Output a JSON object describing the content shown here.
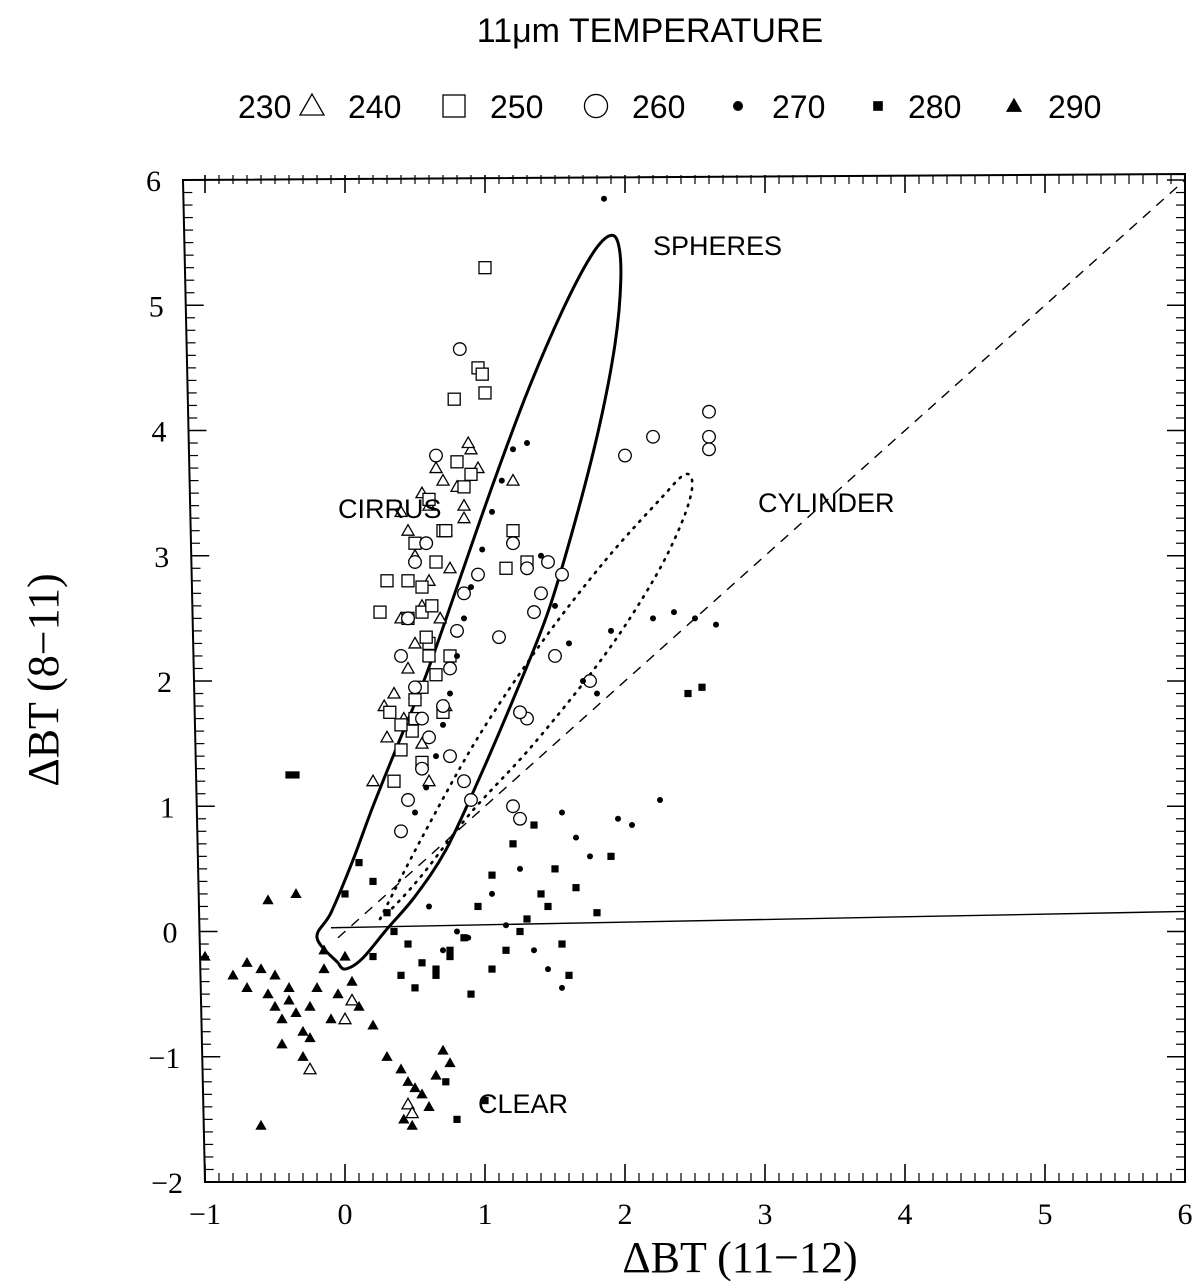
{
  "chart_data": {
    "type": "scatter",
    "title": "11μm TEMPERATURE",
    "legend": {
      "placement": "top",
      "entries": [
        {
          "label": "230",
          "marker": "triangle-open-icon"
        },
        {
          "label": "240",
          "marker": "square-open-icon"
        },
        {
          "label": "250",
          "marker": "circle-open-icon"
        },
        {
          "label": "260",
          "marker": "dot-filled-icon"
        },
        {
          "label": "270",
          "marker": "square-filled-icon"
        },
        {
          "label": "280",
          "marker": "triangle-filled-icon"
        },
        {
          "label": "290",
          "marker": ""
        }
      ]
    },
    "xlabel": "ΔBT (11−12)",
    "ylabel": "ΔBT (8−11)",
    "xlim": [
      -1,
      6
    ],
    "ylim": [
      -2,
      6
    ],
    "xticks": [
      "−1",
      "0",
      "1",
      "2",
      "3",
      "4",
      "5",
      "6"
    ],
    "yticks": [
      "−2",
      "−1",
      "0",
      "1",
      "2",
      "3",
      "4",
      "5",
      "6"
    ],
    "grid": false,
    "annotations": [
      {
        "text": "SPHERES",
        "x": 2.2,
        "y": 5.4
      },
      {
        "text": "CIRRUS",
        "x": -0.05,
        "y": 3.3
      },
      {
        "text": "CYLINDER",
        "x": 2.95,
        "y": 3.35
      },
      {
        "text": "CLEAR",
        "x": 0.95,
        "y": -1.45
      }
    ],
    "reference_lines": {
      "diagonal_dashed": [
        [
          -0.05,
          -0.05
        ],
        [
          6,
          6
        ]
      ],
      "zero_line": [
        [
          -0.1,
          0.03
        ],
        [
          6,
          0.16
        ]
      ]
    },
    "model_curves": {
      "spheres": {
        "style": "solid",
        "points": [
          [
            -0.05,
            -0.25
          ],
          [
            -0.2,
            -0.05
          ],
          [
            -0.1,
            0.15
          ],
          [
            0.05,
            0.55
          ],
          [
            0.2,
            1.0
          ],
          [
            0.38,
            1.5
          ],
          [
            0.58,
            2.05
          ],
          [
            0.8,
            2.75
          ],
          [
            1.05,
            3.55
          ],
          [
            1.3,
            4.3
          ],
          [
            1.55,
            4.95
          ],
          [
            1.75,
            5.38
          ],
          [
            1.88,
            5.55
          ],
          [
            1.95,
            5.5
          ],
          [
            1.97,
            5.2
          ],
          [
            1.93,
            4.7
          ],
          [
            1.82,
            4.05
          ],
          [
            1.65,
            3.3
          ],
          [
            1.45,
            2.55
          ],
          [
            1.2,
            1.85
          ],
          [
            0.95,
            1.2
          ],
          [
            0.72,
            0.65
          ],
          [
            0.5,
            0.28
          ],
          [
            0.3,
            0.02
          ],
          [
            0.12,
            -0.22
          ],
          [
            0,
            -0.3
          ],
          [
            -0.05,
            -0.25
          ]
        ]
      },
      "cylinder": {
        "style": "dotted",
        "points": [
          [
            0.25,
            0.1
          ],
          [
            0.55,
            0.75
          ],
          [
            0.95,
            1.55
          ],
          [
            1.4,
            2.3
          ],
          [
            1.85,
            2.95
          ],
          [
            2.25,
            3.45
          ],
          [
            2.43,
            3.65
          ],
          [
            2.48,
            3.55
          ],
          [
            2.4,
            3.25
          ],
          [
            2.2,
            2.8
          ],
          [
            1.85,
            2.2
          ],
          [
            1.35,
            1.5
          ],
          [
            0.9,
            0.95
          ],
          [
            0.55,
            0.45
          ],
          [
            0.35,
            0.2
          ],
          [
            0.25,
            0.1
          ]
        ]
      }
    },
    "series": [
      {
        "name": "230",
        "marker": "triangle-open",
        "x": [
          0.2,
          0.3,
          0.28,
          0.35,
          0.45,
          0.5,
          0.4,
          0.55,
          0.6,
          0.5,
          0.45,
          0.4,
          0.55,
          0.6,
          0.7,
          0.65,
          0.72,
          0.8,
          0.9,
          0.95,
          0.85,
          0.75,
          0.68,
          0.6,
          0.5,
          0.42,
          0.55,
          0.6,
          0.72,
          0.85,
          0.88,
          1.2,
          -0.25,
          0.05,
          0.0,
          0.45,
          0.48
        ],
        "y": [
          1.2,
          1.55,
          1.8,
          1.9,
          2.1,
          2.3,
          2.5,
          2.6,
          2.8,
          3.0,
          3.2,
          3.35,
          3.5,
          3.4,
          3.6,
          3.7,
          3.2,
          3.55,
          3.85,
          3.7,
          3.3,
          2.9,
          2.5,
          2.2,
          1.9,
          1.7,
          1.5,
          1.2,
          1.8,
          3.4,
          3.9,
          3.6,
          -1.1,
          -0.55,
          -0.7,
          -1.38,
          -1.45
        ]
      },
      {
        "name": "240",
        "marker": "square-open",
        "x": [
          0.35,
          0.4,
          0.5,
          0.55,
          0.6,
          0.45,
          0.55,
          0.65,
          0.7,
          0.6,
          0.5,
          0.45,
          0.55,
          0.6,
          0.65,
          0.5,
          0.48,
          0.55,
          0.7,
          0.75,
          0.85,
          0.9,
          0.8,
          0.72,
          0.95,
          0.98,
          1.0,
          0.78,
          0.62,
          0.58,
          1.15,
          1.3,
          1.2,
          0.25,
          0.32,
          0.3,
          0.4,
          1.0
        ],
        "y": [
          1.2,
          1.45,
          1.7,
          1.95,
          2.2,
          2.5,
          2.75,
          2.95,
          3.2,
          3.45,
          3.1,
          2.8,
          2.55,
          2.3,
          2.05,
          1.85,
          1.6,
          1.35,
          1.75,
          2.2,
          3.55,
          3.65,
          3.75,
          3.2,
          4.5,
          4.45,
          4.3,
          4.25,
          2.6,
          2.35,
          2.9,
          2.95,
          3.2,
          2.55,
          1.75,
          2.8,
          1.65,
          5.3
        ]
      },
      {
        "name": "250",
        "marker": "circle-open",
        "x": [
          0.4,
          0.45,
          0.55,
          0.6,
          0.7,
          0.75,
          0.8,
          0.85,
          0.95,
          1.1,
          1.2,
          1.3,
          1.35,
          1.4,
          1.45,
          1.55,
          1.3,
          1.25,
          1.5,
          1.75,
          2.0,
          2.2,
          2.6,
          2.6,
          2.6,
          0.82,
          0.65,
          0.58,
          0.5,
          0.45,
          0.4,
          0.5,
          0.55,
          0.75,
          0.85,
          0.9,
          1.25,
          1.2
        ],
        "y": [
          0.8,
          1.05,
          1.3,
          1.55,
          1.8,
          2.1,
          2.4,
          2.7,
          2.85,
          2.35,
          3.1,
          2.9,
          2.55,
          2.7,
          2.95,
          2.85,
          1.7,
          1.75,
          2.2,
          2.0,
          3.8,
          3.95,
          4.15,
          3.95,
          3.85,
          4.65,
          3.8,
          3.1,
          2.95,
          2.5,
          2.2,
          1.95,
          1.7,
          1.4,
          1.2,
          1.05,
          0.9,
          1.0
        ]
      },
      {
        "name": "260",
        "marker": "dot-filled",
        "x": [
          0.5,
          0.58,
          0.65,
          0.7,
          0.75,
          0.8,
          0.85,
          0.9,
          0.98,
          1.05,
          1.12,
          1.2,
          1.3,
          1.4,
          1.5,
          1.6,
          1.7,
          1.8,
          1.9,
          2.2,
          2.35,
          2.5,
          2.65,
          1.55,
          1.65,
          1.25,
          1.05,
          1.15,
          1.35,
          1.45,
          1.55,
          1.75,
          1.95,
          2.05,
          2.25,
          0.8,
          0.7,
          0.6,
          1.85,
          0.88
        ],
        "y": [
          0.95,
          1.15,
          1.4,
          1.65,
          1.9,
          2.2,
          2.5,
          2.75,
          3.05,
          3.35,
          3.6,
          3.85,
          3.9,
          3.0,
          2.6,
          2.3,
          2.0,
          1.9,
          2.4,
          2.5,
          2.55,
          2.5,
          2.45,
          0.95,
          0.75,
          0.5,
          0.3,
          0.05,
          -0.15,
          -0.3,
          -0.45,
          0.6,
          0.9,
          0.85,
          1.05,
          0.0,
          -0.15,
          0.2,
          5.85,
          -0.05
        ]
      },
      {
        "name": "270",
        "marker": "square-filled",
        "x": [
          0.0,
          0.1,
          0.2,
          0.3,
          0.35,
          0.45,
          0.55,
          0.65,
          0.75,
          0.85,
          0.95,
          1.05,
          1.2,
          1.35,
          1.5,
          1.65,
          1.8,
          1.9,
          2.45,
          2.55,
          -0.4,
          -0.35,
          0.2,
          0.4,
          0.5,
          0.65,
          0.75,
          0.9,
          1.05,
          1.15,
          1.25,
          1.3,
          1.4,
          1.45,
          1.55,
          1.6,
          1.0,
          0.8,
          0.72
        ],
        "y": [
          0.3,
          0.55,
          0.4,
          0.15,
          0.0,
          -0.1,
          -0.25,
          -0.35,
          -0.2,
          -0.05,
          0.2,
          0.45,
          0.7,
          0.85,
          0.5,
          0.35,
          0.15,
          0.6,
          1.9,
          1.95,
          1.25,
          1.25,
          -0.2,
          -0.35,
          -0.45,
          -0.3,
          -0.15,
          -0.5,
          -0.3,
          -0.15,
          0.0,
          0.1,
          0.3,
          0.2,
          -0.1,
          -0.35,
          -1.35,
          -1.5,
          -1.2
        ]
      },
      {
        "name": "280",
        "marker": "triangle-filled",
        "x": [
          -1.0,
          -0.8,
          -0.7,
          -0.6,
          -0.55,
          -0.5,
          -0.45,
          -0.4,
          -0.35,
          -0.3,
          -0.25,
          -0.2,
          -0.15,
          -0.1,
          -0.05,
          0.05,
          0.1,
          0.2,
          -0.45,
          -0.3,
          -0.4,
          -0.5,
          0.3,
          0.4,
          0.45,
          0.5,
          0.55,
          0.6,
          0.65,
          0.7,
          0.75,
          0.42,
          0.48,
          -0.55,
          -0.35,
          0.0,
          -0.7,
          -0.6,
          -0.25,
          -0.15
        ],
        "y": [
          -0.2,
          -0.35,
          -0.45,
          -0.3,
          -0.5,
          -0.6,
          -0.7,
          -0.55,
          -0.65,
          -0.8,
          -0.6,
          -0.45,
          -0.3,
          -0.7,
          -0.5,
          -0.4,
          -0.6,
          -0.75,
          -0.9,
          -1.0,
          -0.45,
          -0.35,
          -1.0,
          -1.1,
          -1.2,
          -1.25,
          -1.3,
          -1.4,
          -1.15,
          -0.95,
          -1.05,
          -1.5,
          -1.55,
          0.25,
          0.3,
          -0.2,
          -0.25,
          -1.55,
          -0.85,
          -0.15
        ]
      }
    ]
  }
}
